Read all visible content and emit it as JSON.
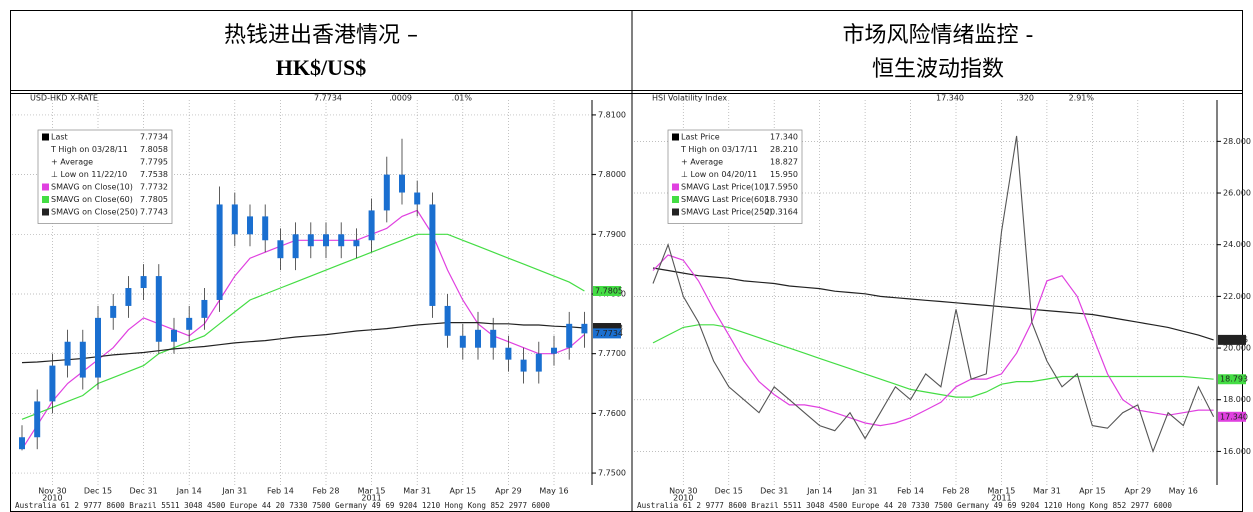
{
  "header": {
    "left_title": [
      "热钱进出香港情况 –",
      "HK$/US$"
    ],
    "right_title": [
      "市场风险情绪监控 -",
      "恒生波动指数"
    ]
  },
  "chart_data": [
    {
      "type": "candlestick",
      "ticker": [
        "USD-HKD X-RATE",
        "7.7734",
        ".0009",
        ".01%"
      ],
      "categories": [
        null,
        null,
        "Nov 30",
        null,
        null,
        "Dec 15",
        null,
        null,
        "Dec 31",
        null,
        null,
        "Jan 14",
        null,
        null,
        "Jan 31",
        null,
        null,
        "Feb 14",
        null,
        null,
        "Feb 28",
        null,
        null,
        "Mar 15",
        null,
        null,
        "Mar 31",
        null,
        null,
        "Apr 15",
        null,
        null,
        "Apr 29",
        null,
        null,
        "May 16",
        null,
        null
      ],
      "year_labels": [
        "2010",
        "2011"
      ],
      "color": "#1a6fd0",
      "open": [
        7.754,
        7.756,
        7.762,
        7.768,
        7.772,
        7.766,
        7.776,
        7.778,
        7.781,
        7.783,
        7.772,
        7.774,
        7.776,
        7.779,
        7.795,
        7.79,
        7.793,
        7.789,
        7.786,
        7.79,
        7.788,
        7.79,
        7.788,
        7.789,
        7.794,
        7.8,
        7.797,
        7.795,
        7.778,
        7.773,
        7.771,
        7.774,
        7.771,
        7.769,
        7.767,
        7.77,
        7.771,
        7.775
      ],
      "high": [
        7.758,
        7.764,
        7.77,
        7.774,
        7.774,
        7.778,
        7.78,
        7.783,
        7.785,
        7.785,
        7.776,
        7.778,
        7.781,
        7.798,
        7.797,
        7.795,
        7.795,
        7.791,
        7.792,
        7.792,
        7.792,
        7.792,
        7.791,
        7.796,
        7.803,
        7.806,
        7.799,
        7.797,
        7.78,
        7.775,
        7.777,
        7.776,
        7.773,
        7.771,
        7.772,
        7.773,
        7.777,
        7.777
      ],
      "low": [
        7.7538,
        7.754,
        7.76,
        7.766,
        7.764,
        7.764,
        7.774,
        7.776,
        7.779,
        7.77,
        7.77,
        7.772,
        7.774,
        7.777,
        7.788,
        7.788,
        7.787,
        7.784,
        7.784,
        7.786,
        7.786,
        7.786,
        7.786,
        7.787,
        7.792,
        7.795,
        7.793,
        7.776,
        7.771,
        7.769,
        7.769,
        7.769,
        7.767,
        7.765,
        7.765,
        7.768,
        7.769,
        7.771
      ],
      "close": [
        7.756,
        7.762,
        7.768,
        7.772,
        7.766,
        7.776,
        7.778,
        7.781,
        7.783,
        7.772,
        7.774,
        7.776,
        7.779,
        7.795,
        7.79,
        7.793,
        7.789,
        7.786,
        7.79,
        7.788,
        7.79,
        7.788,
        7.789,
        7.794,
        7.8,
        7.797,
        7.795,
        7.778,
        7.773,
        7.771,
        7.774,
        7.771,
        7.769,
        7.767,
        7.77,
        7.771,
        7.775,
        7.7734
      ],
      "series": [
        {
          "name": "SMAVG on Close(10)",
          "legend_value": "7.7732",
          "color": "#e040e0",
          "values": [
            7.754,
            7.758,
            7.762,
            7.765,
            7.767,
            7.769,
            7.771,
            7.774,
            7.776,
            7.775,
            7.774,
            7.773,
            7.775,
            7.779,
            7.783,
            7.786,
            7.787,
            7.788,
            7.789,
            7.789,
            7.789,
            7.789,
            7.789,
            7.79,
            7.791,
            7.793,
            7.794,
            7.79,
            7.784,
            7.779,
            7.775,
            7.773,
            7.772,
            7.771,
            7.77,
            7.77,
            7.771,
            7.7732
          ]
        },
        {
          "name": "SMAVG on Close(60)",
          "legend_value": "7.7805",
          "color": "#44dd44",
          "values": [
            7.759,
            7.76,
            7.761,
            7.762,
            7.763,
            7.765,
            7.766,
            7.767,
            7.768,
            7.77,
            7.771,
            7.772,
            7.773,
            7.775,
            7.777,
            7.779,
            7.78,
            7.781,
            7.782,
            7.783,
            7.784,
            7.785,
            7.786,
            7.787,
            7.788,
            7.789,
            7.79,
            7.79,
            7.79,
            7.789,
            7.788,
            7.787,
            7.786,
            7.785,
            7.784,
            7.783,
            7.782,
            7.7805
          ]
        },
        {
          "name": "SMAVG on Close(250)",
          "legend_value": "7.7743",
          "color": "#222222",
          "values": [
            7.7685,
            7.7686,
            7.7688,
            7.769,
            7.7692,
            7.7695,
            7.7698,
            7.77,
            7.7702,
            7.7705,
            7.7708,
            7.771,
            7.7712,
            7.7715,
            7.7718,
            7.772,
            7.7722,
            7.7725,
            7.7728,
            7.773,
            7.7732,
            7.7735,
            7.7738,
            7.774,
            7.7742,
            7.7745,
            7.7748,
            7.775,
            7.7752,
            7.7752,
            7.7752,
            7.775,
            7.775,
            7.7748,
            7.7748,
            7.7746,
            7.7745,
            7.7743
          ]
        }
      ],
      "legend": [
        {
          "label": "Last",
          "value": "7.7734"
        },
        {
          "label": "T High on 03/28/11",
          "value": "7.8058"
        },
        {
          "label": "+ Average",
          "value": "7.7795"
        },
        {
          "label": "⊥ Low on 11/22/10",
          "value": "7.7538"
        }
      ],
      "value_tags": [
        {
          "value": 7.7805,
          "label": "7.7805",
          "color": "#44dd44"
        },
        {
          "value": 7.7743,
          "label": "7.7743",
          "color": "#222222"
        },
        {
          "value": 7.7734,
          "label": "7.7734",
          "color": "#1a6fd0"
        }
      ],
      "ylim": [
        7.748,
        7.8125
      ],
      "yticks": [
        {
          "value": 7.75,
          "label": "7.7500"
        },
        {
          "value": 7.76,
          "label": "7.7600"
        },
        {
          "value": 7.77,
          "label": "7.7700"
        },
        {
          "value": 7.78,
          "label": "7.7800"
        },
        {
          "value": 7.79,
          "label": "7.7900"
        },
        {
          "value": 7.8,
          "label": "7.8000"
        },
        {
          "value": 7.81,
          "label": "7.8100"
        }
      ],
      "grid": true,
      "footer": "Australia 61 2 9777 8600 Brazil 5511 3048 4500 Europe 44 20 7330 7500 Germany 49 69 9204 1210 Hong Kong 852 2977 6000"
    },
    {
      "type": "line",
      "ticker": [
        "HSI Volatility Index",
        "17.340",
        ".320",
        "2.91%"
      ],
      "categories": [
        null,
        null,
        "Nov 30",
        null,
        null,
        "Dec 15",
        null,
        null,
        "Dec 31",
        null,
        null,
        "Jan 14",
        null,
        null,
        "Jan 31",
        null,
        null,
        "Feb 14",
        null,
        null,
        "Feb 28",
        null,
        null,
        "Mar 15",
        null,
        null,
        "Mar 31",
        null,
        null,
        "Apr 15",
        null,
        null,
        "Apr 29",
        null,
        null,
        "May 16",
        null,
        null
      ],
      "year_labels": [
        "2010",
        "2011"
      ],
      "series": [
        {
          "name": "Last Price",
          "legend_value": "17.340",
          "color": "#555555",
          "values": [
            22.5,
            24.0,
            22.0,
            21.0,
            19.5,
            18.5,
            18.0,
            17.5,
            18.5,
            18.0,
            17.5,
            17.0,
            16.8,
            17.5,
            16.5,
            17.5,
            18.5,
            18.0,
            19.0,
            18.5,
            21.5,
            18.8,
            19.0,
            24.5,
            28.21,
            21.0,
            19.5,
            18.5,
            19.0,
            17.0,
            16.9,
            17.5,
            17.8,
            16.0,
            17.5,
            17.0,
            18.5,
            17.34
          ]
        },
        {
          "name": "SMAVG Last Price(10)",
          "legend_value": "17.5950",
          "color": "#e040e0",
          "values": [
            23.0,
            23.6,
            23.4,
            22.6,
            21.5,
            20.5,
            19.5,
            18.7,
            18.2,
            17.8,
            17.8,
            17.7,
            17.5,
            17.3,
            17.1,
            17.0,
            17.1,
            17.3,
            17.6,
            17.9,
            18.5,
            18.8,
            18.8,
            19.0,
            19.8,
            21.0,
            22.6,
            22.8,
            22.0,
            20.5,
            19.0,
            18.0,
            17.6,
            17.5,
            17.4,
            17.5,
            17.6,
            17.595
          ]
        },
        {
          "name": "SMAVG Last Price(60)",
          "legend_value": "18.7930",
          "color": "#44dd44",
          "values": [
            20.2,
            20.5,
            20.8,
            20.9,
            20.9,
            20.8,
            20.6,
            20.4,
            20.2,
            20.0,
            19.8,
            19.6,
            19.4,
            19.2,
            19.0,
            18.8,
            18.6,
            18.4,
            18.3,
            18.2,
            18.1,
            18.1,
            18.3,
            18.6,
            18.7,
            18.7,
            18.8,
            18.9,
            18.9,
            18.9,
            18.9,
            18.9,
            18.9,
            18.9,
            18.9,
            18.9,
            18.85,
            18.793
          ]
        },
        {
          "name": "SMAVG Last Price(250)",
          "legend_value": "20.3164",
          "color": "#222222",
          "values": [
            23.1,
            23.0,
            22.9,
            22.8,
            22.75,
            22.7,
            22.6,
            22.55,
            22.5,
            22.4,
            22.35,
            22.3,
            22.2,
            22.15,
            22.1,
            22.0,
            21.95,
            21.9,
            21.85,
            21.8,
            21.75,
            21.7,
            21.65,
            21.6,
            21.55,
            21.5,
            21.45,
            21.4,
            21.35,
            21.3,
            21.2,
            21.1,
            21.0,
            20.9,
            20.8,
            20.65,
            20.5,
            20.3164
          ]
        }
      ],
      "legend": [
        {
          "label": "T High on 03/17/11",
          "value": "28.210"
        },
        {
          "label": "+ Average",
          "value": "18.827"
        },
        {
          "label": "⊥ Low on 04/20/11",
          "value": "15.950"
        }
      ],
      "value_tags": [
        {
          "value": 20.316,
          "label": "20.316",
          "color": "#222222"
        },
        {
          "value": 18.793,
          "label": "18.793",
          "color": "#44dd44"
        },
        {
          "value": 17.34,
          "label": "17.340",
          "color": "#e040e0"
        }
      ],
      "ylim": [
        14.7,
        29.6
      ],
      "yticks": [
        {
          "value": 16,
          "label": "16.000"
        },
        {
          "value": 18,
          "label": "18.000"
        },
        {
          "value": 20,
          "label": "20.000"
        },
        {
          "value": 22,
          "label": "22.000"
        },
        {
          "value": 24,
          "label": "24.000"
        },
        {
          "value": 26,
          "label": "26.000"
        },
        {
          "value": 28,
          "label": "28.000"
        }
      ],
      "grid": true,
      "footer": "Australia 61 2 9777 8600 Brazil 5511 3048 4500 Europe 44 20 7330 7500 Germany 49 69 9204 1210 Hong Kong 852 2977 6000"
    }
  ]
}
